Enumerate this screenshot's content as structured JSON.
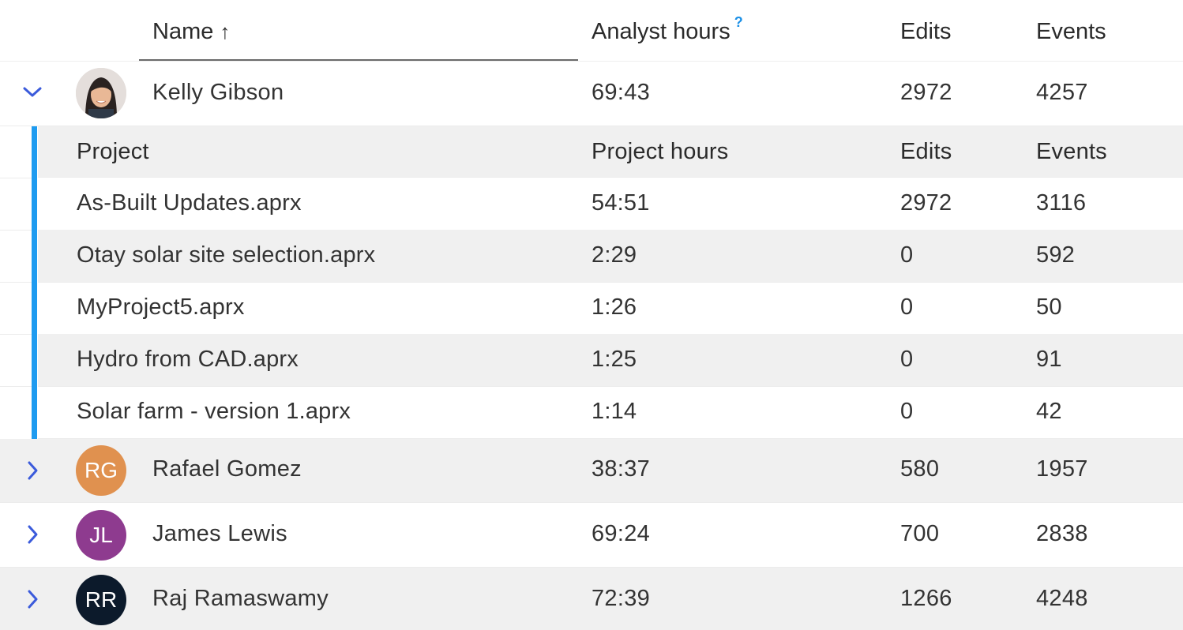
{
  "header": {
    "name": "Name",
    "sort_arrow": "↑",
    "analyst_hours": "Analyst hours",
    "help": "?",
    "edits": "Edits",
    "events": "Events"
  },
  "colors": {
    "accent": "#1e9bf0",
    "chevron": "#3b5bdb",
    "row_alt": "#f0f0f0"
  },
  "users": [
    {
      "name": "Kelly Gibson",
      "hours": "69:43",
      "edits": "2972",
      "events": "4257",
      "expanded": true,
      "avatar": {
        "type": "photo",
        "initials": ""
      }
    },
    {
      "name": "Rafael Gomez",
      "hours": "38:37",
      "edits": "580",
      "events": "1957",
      "expanded": false,
      "avatar": {
        "type": "initials",
        "initials": "RG",
        "color": "#e0914f"
      }
    },
    {
      "name": "James Lewis",
      "hours": "69:24",
      "edits": "700",
      "events": "2838",
      "expanded": false,
      "avatar": {
        "type": "initials",
        "initials": "JL",
        "color": "#8e3b8f"
      }
    },
    {
      "name": "Raj Ramaswamy",
      "hours": "72:39",
      "edits": "1266",
      "events": "4248",
      "expanded": false,
      "avatar": {
        "type": "initials",
        "initials": "RR",
        "color": "#0c1a2b"
      }
    }
  ],
  "projects": {
    "headers": {
      "project": "Project",
      "hours": "Project hours",
      "edits": "Edits",
      "events": "Events"
    },
    "rows": [
      {
        "name": "As-Built Updates.aprx",
        "hours": "54:51",
        "edits": "2972",
        "events": "3116"
      },
      {
        "name": "Otay solar site selection.aprx",
        "hours": "2:29",
        "edits": "0",
        "events": "592"
      },
      {
        "name": "MyProject5.aprx",
        "hours": "1:26",
        "edits": "0",
        "events": "50"
      },
      {
        "name": "Hydro from CAD.aprx",
        "hours": "1:25",
        "edits": "0",
        "events": "91"
      },
      {
        "name": "Solar farm - version 1.aprx",
        "hours": "1:14",
        "edits": "0",
        "events": "42"
      }
    ]
  }
}
